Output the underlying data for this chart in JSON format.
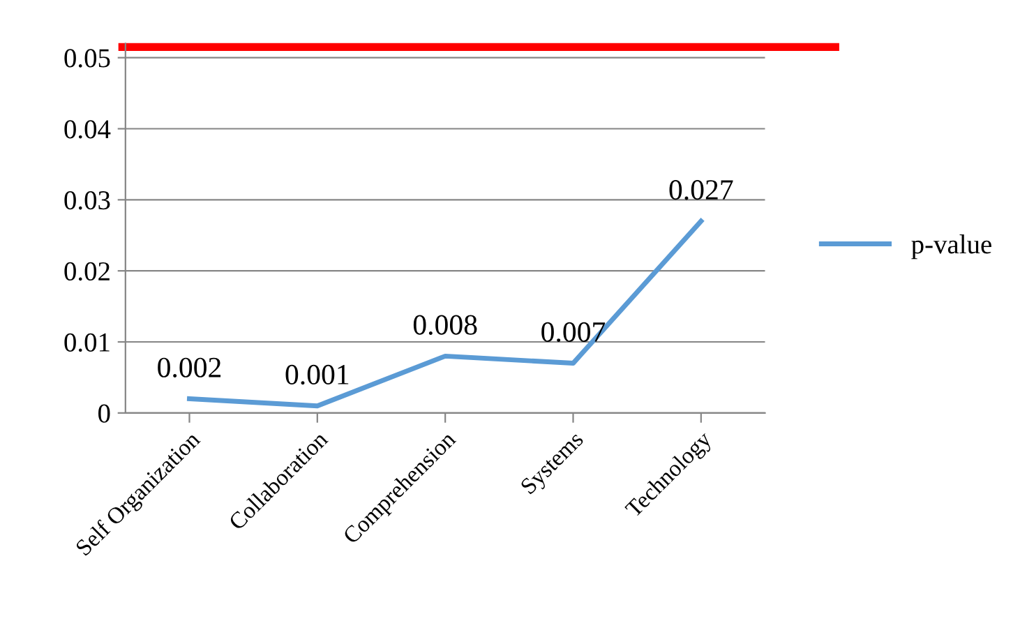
{
  "chart_data": {
    "type": "line",
    "categories": [
      "Self Organization",
      "Collaboration",
      "Comprehension",
      "Systems",
      "Technology"
    ],
    "series": [
      {
        "name": "p-value",
        "color": "#5b9bd5",
        "values": [
          0.002,
          0.001,
          0.008,
          0.007,
          0.027
        ]
      }
    ],
    "ylim": [
      0,
      0.052
    ],
    "yticks": [
      0,
      0.01,
      0.02,
      0.03,
      0.04,
      0.05
    ],
    "ref_lines": [
      {
        "axis": "y",
        "value": 0.0515,
        "color": "#ff0000",
        "line_style": "solid"
      }
    ],
    "data_labels": true,
    "grid": "y",
    "legend": "right",
    "marker": "none",
    "line_style": "solid"
  }
}
